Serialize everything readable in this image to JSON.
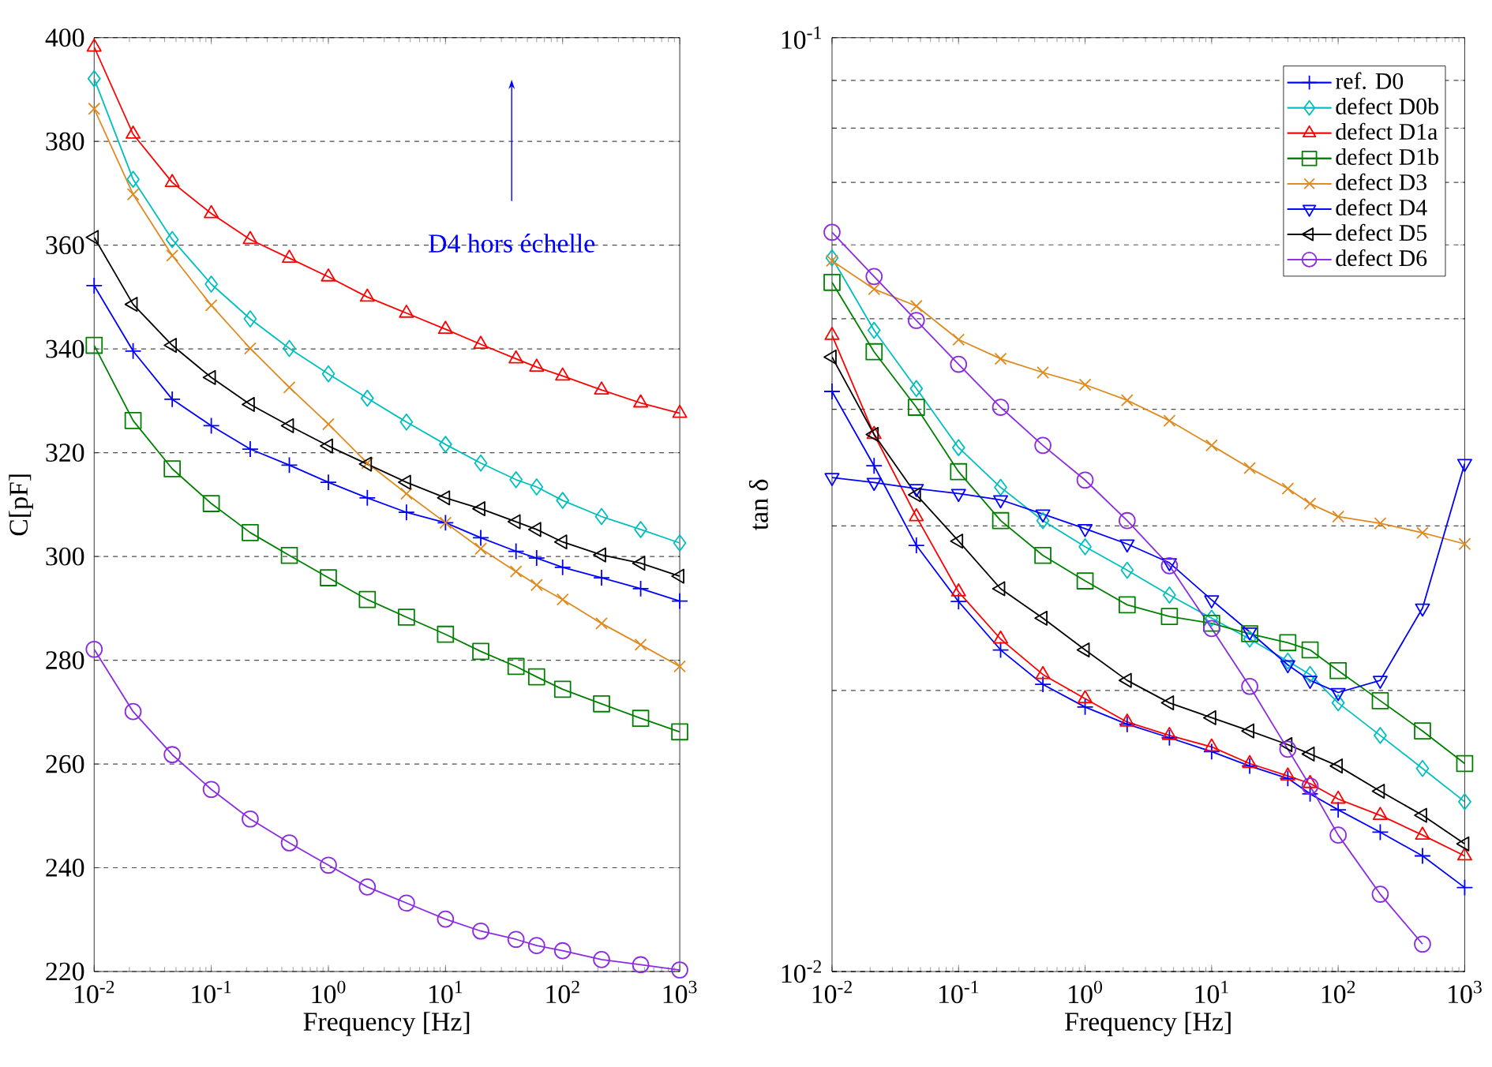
{
  "chart_data": [
    {
      "type": "line",
      "xlabel": "Frequency [Hz]",
      "ylabel": "C[pF]",
      "log": "x",
      "grid": "y",
      "xlim": [
        0.01,
        1000
      ],
      "ylim": [
        220,
        400
      ],
      "xticks": [
        {
          "value": 0.01,
          "label": "10$^{-2}$"
        },
        {
          "value": 0.1,
          "label": "10$^{-1}$"
        },
        {
          "value": 1,
          "label": "10$^{0}$"
        },
        {
          "value": 10,
          "label": "10$^{1}$"
        },
        {
          "value": 100,
          "label": "10$^{2}$"
        },
        {
          "value": 1000,
          "label": "10$^{3}$"
        }
      ],
      "yticks": [
        220,
        240,
        260,
        280,
        300,
        320,
        340,
        360,
        380,
        400
      ],
      "annotations": [
        "D4 hors échelle"
      ],
      "x": [
        0.01,
        0.0215,
        0.0464,
        0.1,
        0.215,
        0.464,
        1,
        2.15,
        4.64,
        10,
        20,
        40,
        60,
        100,
        215,
        464,
        1000
      ],
      "series": [
        {
          "color": "#0000ff",
          "marker": "plus",
          "values": [
            352.2,
            339.6,
            330.3,
            325.2,
            320.7,
            317.6,
            314.3,
            311.3,
            308.5,
            306.5,
            303.6,
            301,
            299.7,
            297.9,
            295.9,
            293.8,
            291.4
          ]
        },
        {
          "color": "#00bfbf",
          "marker": "diamond",
          "values": [
            392.1,
            372.7,
            361.1,
            352.5,
            345.8,
            340.1,
            335.2,
            330.5,
            325.9,
            321.6,
            318,
            314.8,
            313.4,
            310.8,
            307.7,
            305.2,
            302.6
          ]
        },
        {
          "color": "#ff0000",
          "marker": "triangle",
          "values": [
            398.2,
            381.4,
            372.1,
            366.1,
            361.1,
            357.5,
            353.9,
            350,
            346.9,
            343.8,
            340.9,
            338.1,
            336.5,
            334.8,
            332.1,
            329.6,
            327.6
          ]
        },
        {
          "color": "#008000",
          "marker": "square",
          "values": [
            340.7,
            326.2,
            316.9,
            310.2,
            304.6,
            300.2,
            295.9,
            291.7,
            288.3,
            285,
            281.7,
            278.8,
            276.8,
            274.4,
            271.6,
            268.8,
            266.2
          ]
        },
        {
          "color": "#df8a1e",
          "marker": "cross",
          "values": [
            386.3,
            369.8,
            358,
            348.4,
            340.1,
            332.6,
            325.5,
            318,
            312.1,
            306.5,
            301.5,
            297.1,
            294.5,
            291.7,
            287.1,
            283,
            278.8
          ]
        },
        {
          "color": "#000000",
          "marker": "triangle-left",
          "values": [
            361.5,
            348.6,
            340.7,
            334.5,
            329.3,
            325.2,
            321.3,
            317.8,
            314.3,
            311.3,
            309.2,
            306.7,
            305.2,
            302.8,
            300.3,
            298.7,
            296.2
          ]
        },
        {
          "color": "#8b2be2",
          "marker": "circle",
          "values": [
            282.1,
            270.1,
            261.8,
            255.1,
            249.4,
            244.8,
            240.5,
            236.3,
            233.2,
            230.1,
            227.8,
            226.2,
            225,
            224,
            222.3,
            221.3,
            220.3
          ]
        }
      ]
    },
    {
      "type": "line",
      "xlabel": "Frequency [Hz]",
      "ylabel": "tan δ",
      "log": "xy",
      "grid": "y",
      "legend": "top right",
      "xlim": [
        0.01,
        1000
      ],
      "ylim": [
        0.01,
        0.1
      ],
      "xticks": [
        {
          "value": 0.01,
          "label": "10$^{-2}$"
        },
        {
          "value": 0.1,
          "label": "10$^{-1}$"
        },
        {
          "value": 1,
          "label": "10$^{0}$"
        },
        {
          "value": 10,
          "label": "10$^{1}$"
        },
        {
          "value": 100,
          "label": "10$^{2}$"
        },
        {
          "value": 1000,
          "label": "10$^{3}$"
        }
      ],
      "yticks": [
        {
          "value": 0.01,
          "label": "10$^{-2}$"
        },
        {
          "value": 0.1,
          "label": "10$^{-1}$"
        }
      ],
      "x": [
        0.01,
        0.0215,
        0.0464,
        0.1,
        0.215,
        0.464,
        1,
        2.15,
        4.64,
        10,
        20,
        40,
        60,
        100,
        215,
        464,
        1000
      ],
      "series": [
        {
          "name": "ref. D0",
          "color": "#0000ff",
          "marker": "plus",
          "values": [
            0.0418,
            0.0348,
            0.0286,
            0.0249,
            0.0221,
            0.0203,
            0.0192,
            0.0184,
            0.0178,
            0.0172,
            0.0166,
            0.0161,
            0.0155,
            0.0149,
            0.0141,
            0.0133,
            0.0123
          ]
        },
        {
          "name": "defect D0b",
          "color": "#00bfbf",
          "marker": "diamond",
          "values": [
            0.0581,
            0.0486,
            0.0421,
            0.0364,
            0.033,
            0.0304,
            0.0285,
            0.0269,
            0.0253,
            0.0239,
            0.0227,
            0.0215,
            0.0208,
            0.0194,
            0.0179,
            0.0165,
            0.0152
          ]
        },
        {
          "name": "defect D1a",
          "color": "#ff0000",
          "marker": "triangle",
          "values": [
            0.048,
            0.0376,
            0.0307,
            0.0255,
            0.0227,
            0.0208,
            0.0196,
            0.0185,
            0.0179,
            0.0174,
            0.0167,
            0.0162,
            0.0159,
            0.0153,
            0.0147,
            0.014,
            0.0133
          ]
        },
        {
          "name": "defect D1b",
          "color": "#008000",
          "marker": "square",
          "values": [
            0.0547,
            0.0461,
            0.0402,
            0.0343,
            0.0304,
            0.0279,
            0.0262,
            0.0247,
            0.024,
            0.0236,
            0.023,
            0.0225,
            0.0221,
            0.021,
            0.0195,
            0.0181,
            0.0167
          ]
        },
        {
          "name": "defect D3",
          "color": "#df8a1e",
          "marker": "cross",
          "values": [
            0.0577,
            0.0538,
            0.0516,
            0.0475,
            0.0453,
            0.0438,
            0.0425,
            0.0409,
            0.0389,
            0.0366,
            0.0346,
            0.0329,
            0.0317,
            0.0307,
            0.0302,
            0.0295,
            0.0287
          ]
        },
        {
          "name": "defect D4",
          "color": "#0000ff",
          "marker": "triangle-down",
          "values": [
            0.0338,
            0.0334,
            0.0329,
            0.0325,
            0.032,
            0.0309,
            0.0298,
            0.0287,
            0.0274,
            0.025,
            0.0231,
            0.0213,
            0.0205,
            0.0199,
            0.0205,
            0.0245,
            0.035
          ]
        },
        {
          "name": "defect D5",
          "color": "#000000",
          "marker": "triangle-left",
          "values": [
            0.0455,
            0.0376,
            0.0324,
            0.0289,
            0.0257,
            0.0239,
            0.0221,
            0.0205,
            0.0194,
            0.0187,
            0.0181,
            0.0175,
            0.0171,
            0.0166,
            0.0156,
            0.0147,
            0.0137
          ]
        },
        {
          "name": "defect D6",
          "color": "#8b2be2",
          "marker": "circle",
          "values": [
            0.0619,
            0.0555,
            0.0498,
            0.0447,
            0.0402,
            0.0366,
            0.0336,
            0.0304,
            0.0272,
            0.0233,
            0.0202,
            0.0173,
            0.0158,
            0.014,
            0.0121,
            0.0107,
            null
          ]
        }
      ]
    }
  ]
}
